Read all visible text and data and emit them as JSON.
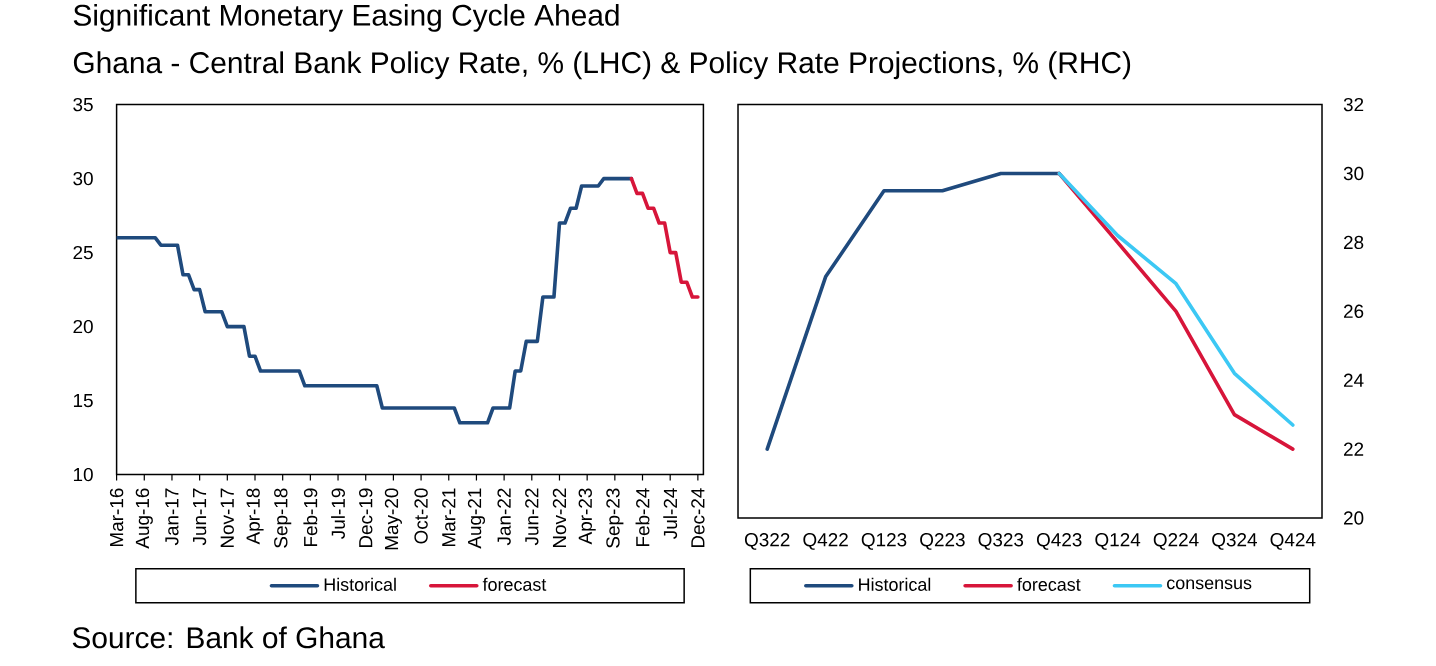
{
  "chart_data": [
    {
      "type": "line",
      "title": "Significant Monetary Easing Cycle Ahead",
      "subtitle": "Ghana - Central Bank Policy Rate, % (LHC) & Policy Rate Projections, % (RHC)",
      "annotations": [
        "Source: Bank of Ghana"
      ],
      "xlim": [
        "2016-03",
        "2025-01"
      ],
      "xticks": [
        {
          "value": "2016-03",
          "label": "Mar-16"
        },
        {
          "value": "2016-08",
          "label": "Aug-16"
        },
        {
          "value": "2017-01",
          "label": "Jan-17"
        },
        {
          "value": "2017-06",
          "label": "Jun-17"
        },
        {
          "value": "2017-11",
          "label": "Nov-17"
        },
        {
          "value": "2018-04",
          "label": "Apr-18"
        },
        {
          "value": "2018-09",
          "label": "Sep-18"
        },
        {
          "value": "2019-02",
          "label": "Feb-19"
        },
        {
          "value": "2019-07",
          "label": "Jul-19"
        },
        {
          "value": "2019-12",
          "label": "Dec-19"
        },
        {
          "value": "2020-05",
          "label": "May-20"
        },
        {
          "value": "2020-10",
          "label": "Oct-20"
        },
        {
          "value": "2021-03",
          "label": "Mar-21"
        },
        {
          "value": "2021-08",
          "label": "Aug-21"
        },
        {
          "value": "2022-01",
          "label": "Jan-22"
        },
        {
          "value": "2022-06",
          "label": "Jun-22"
        },
        {
          "value": "2022-11",
          "label": "Nov-22"
        },
        {
          "value": "2023-04",
          "label": "Apr-23"
        },
        {
          "value": "2023-09",
          "label": "Sep-23"
        },
        {
          "value": "2024-02",
          "label": "Feb-24"
        },
        {
          "value": "2024-07",
          "label": "Jul-24"
        },
        {
          "value": "2024-12",
          "label": "Dec-24"
        }
      ],
      "ylim": [
        10,
        35
      ],
      "yticks": [
        10,
        15,
        20,
        25,
        30,
        35
      ],
      "legend": "bottom",
      "series": [
        {
          "name": "Historical",
          "color": "#1f4a7d",
          "x": [
            "2016-03",
            "2016-10",
            "2016-11",
            "2017-02",
            "2017-03",
            "2017-04",
            "2017-05",
            "2017-06",
            "2017-07",
            "2017-10",
            "2017-11",
            "2018-02",
            "2018-03",
            "2018-04",
            "2018-05",
            "2018-12",
            "2019-01",
            "2020-02",
            "2020-03",
            "2021-04",
            "2021-05",
            "2021-10",
            "2021-11",
            "2022-02",
            "2022-03",
            "2022-04",
            "2022-05",
            "2022-07",
            "2022-08",
            "2022-10",
            "2022-11",
            "2022-12",
            "2023-01",
            "2023-02",
            "2023-03",
            "2023-06",
            "2023-07",
            "2023-12"
          ],
          "values": [
            26,
            26,
            25.5,
            25.5,
            23.5,
            23.5,
            22.5,
            22.5,
            21,
            21,
            20,
            20,
            18,
            18,
            17,
            17,
            16,
            16,
            14.5,
            14.5,
            13.5,
            13.5,
            14.5,
            14.5,
            17,
            17,
            19,
            19,
            22,
            22,
            27,
            27,
            28,
            28,
            29.5,
            29.5,
            30,
            30
          ]
        },
        {
          "name": "forecast",
          "color": "#d7153a",
          "x": [
            "2023-12",
            "2024-01",
            "2024-02",
            "2024-03",
            "2024-04",
            "2024-05",
            "2024-06",
            "2024-07",
            "2024-08",
            "2024-09",
            "2024-10",
            "2024-11",
            "2024-12"
          ],
          "values": [
            30,
            29,
            29,
            28,
            28,
            27,
            27,
            25,
            25,
            23,
            23,
            22,
            22
          ]
        }
      ]
    },
    {
      "type": "line",
      "categories": [
        "Q322",
        "Q422",
        "Q123",
        "Q223",
        "Q323",
        "Q423",
        "Q124",
        "Q224",
        "Q324",
        "Q424"
      ],
      "ylim": [
        20,
        32
      ],
      "yticks": [
        20,
        22,
        24,
        26,
        28,
        30,
        32
      ],
      "legend": "bottom",
      "series": [
        {
          "name": "Historical",
          "color": "#1f4a7d",
          "values": [
            22,
            27,
            29.5,
            29.5,
            30,
            30,
            null,
            null,
            null,
            null
          ]
        },
        {
          "name": "forecast",
          "color": "#d7153a",
          "values": [
            null,
            null,
            null,
            null,
            null,
            30,
            28,
            26,
            23,
            22
          ]
        },
        {
          "name": "consensus",
          "color": "#3cc8f4",
          "values": [
            null,
            null,
            null,
            null,
            null,
            30,
            28.2,
            26.8,
            24.2,
            22.7
          ]
        }
      ]
    }
  ]
}
